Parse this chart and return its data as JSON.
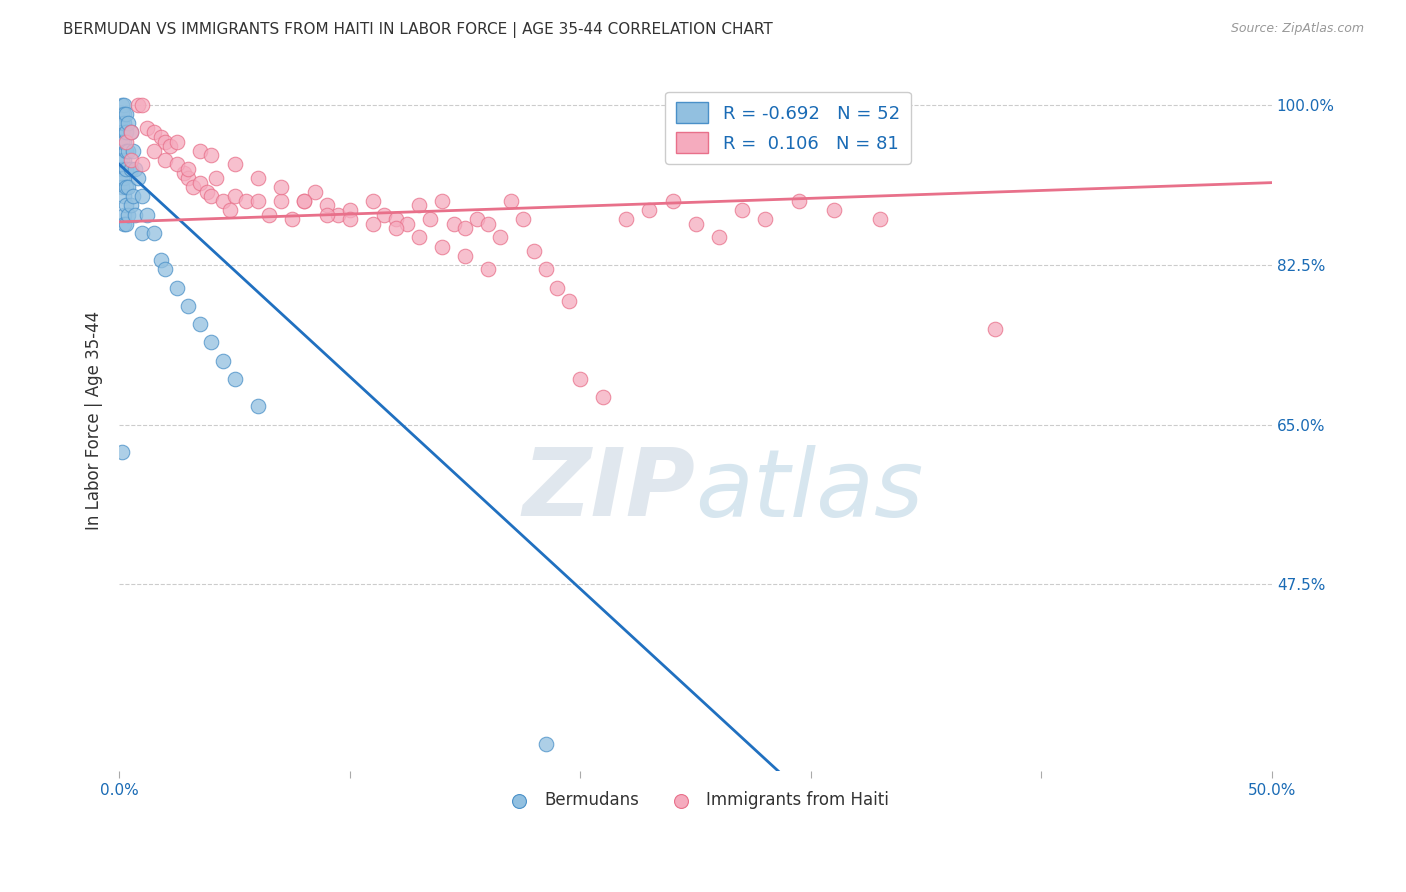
{
  "title": "BERMUDAN VS IMMIGRANTS FROM HAITI IN LABOR FORCE | AGE 35-44 CORRELATION CHART",
  "source": "Source: ZipAtlas.com",
  "ylabel": "In Labor Force | Age 35-44",
  "xlim": [
    0.0,
    0.5
  ],
  "ylim": [
    0.27,
    1.04
  ],
  "ytick_positions": [
    0.475,
    0.65,
    0.825,
    1.0
  ],
  "ytick_labels": [
    "47.5%",
    "65.0%",
    "82.5%",
    "100.0%"
  ],
  "legend_r_blue": "-0.692",
  "legend_n_blue": "52",
  "legend_r_pink": "0.106",
  "legend_n_pink": "81",
  "legend_label_blue": "Bermudans",
  "legend_label_pink": "Immigrants from Haiti",
  "watermark_zip": "ZIP",
  "watermark_atlas": "atlas",
  "blue_color": "#92C0E0",
  "pink_color": "#F5ABBE",
  "blue_edge_color": "#4A90C8",
  "pink_edge_color": "#E8708A",
  "blue_line_color": "#2070C0",
  "pink_line_color": "#E8708A",
  "blue_trend_x": [
    0.0,
    0.286
  ],
  "blue_trend_y": [
    0.935,
    0.27
  ],
  "pink_trend_x": [
    0.0,
    0.5
  ],
  "pink_trend_y": [
    0.872,
    0.915
  ],
  "blue_scatter_x": [
    0.001,
    0.001,
    0.001,
    0.001,
    0.001,
    0.001,
    0.001,
    0.001,
    0.001,
    0.002,
    0.002,
    0.002,
    0.002,
    0.002,
    0.002,
    0.002,
    0.002,
    0.002,
    0.003,
    0.003,
    0.003,
    0.003,
    0.003,
    0.003,
    0.003,
    0.004,
    0.004,
    0.004,
    0.004,
    0.005,
    0.005,
    0.005,
    0.006,
    0.006,
    0.007,
    0.007,
    0.008,
    0.01,
    0.01,
    0.012,
    0.015,
    0.018,
    0.02,
    0.025,
    0.03,
    0.035,
    0.04,
    0.045,
    0.05,
    0.06,
    0.185,
    0.001
  ],
  "blue_scatter_y": [
    1.0,
    0.99,
    0.98,
    0.97,
    0.96,
    0.94,
    0.93,
    0.92,
    0.91,
    1.0,
    0.99,
    0.98,
    0.96,
    0.94,
    0.92,
    0.9,
    0.88,
    0.87,
    0.99,
    0.97,
    0.95,
    0.93,
    0.91,
    0.89,
    0.87,
    0.98,
    0.95,
    0.91,
    0.88,
    0.97,
    0.93,
    0.89,
    0.95,
    0.9,
    0.93,
    0.88,
    0.92,
    0.9,
    0.86,
    0.88,
    0.86,
    0.83,
    0.82,
    0.8,
    0.78,
    0.76,
    0.74,
    0.72,
    0.7,
    0.67,
    0.3,
    0.62
  ],
  "pink_scatter_x": [
    0.003,
    0.005,
    0.008,
    0.01,
    0.012,
    0.015,
    0.018,
    0.02,
    0.022,
    0.025,
    0.028,
    0.03,
    0.032,
    0.035,
    0.038,
    0.04,
    0.042,
    0.045,
    0.048,
    0.05,
    0.055,
    0.06,
    0.065,
    0.07,
    0.075,
    0.08,
    0.085,
    0.09,
    0.095,
    0.1,
    0.11,
    0.115,
    0.12,
    0.125,
    0.13,
    0.135,
    0.14,
    0.145,
    0.15,
    0.155,
    0.16,
    0.165,
    0.17,
    0.175,
    0.18,
    0.185,
    0.19,
    0.195,
    0.2,
    0.21,
    0.22,
    0.23,
    0.24,
    0.25,
    0.26,
    0.27,
    0.28,
    0.295,
    0.31,
    0.33,
    0.005,
    0.01,
    0.015,
    0.02,
    0.025,
    0.03,
    0.035,
    0.04,
    0.05,
    0.06,
    0.07,
    0.08,
    0.09,
    0.1,
    0.11,
    0.12,
    0.13,
    0.14,
    0.15,
    0.16,
    0.38
  ],
  "pink_scatter_y": [
    0.96,
    0.97,
    1.0,
    1.0,
    0.975,
    0.97,
    0.965,
    0.96,
    0.955,
    0.96,
    0.925,
    0.92,
    0.91,
    0.915,
    0.905,
    0.9,
    0.92,
    0.895,
    0.885,
    0.9,
    0.895,
    0.895,
    0.88,
    0.895,
    0.875,
    0.895,
    0.905,
    0.89,
    0.88,
    0.885,
    0.895,
    0.88,
    0.875,
    0.87,
    0.89,
    0.875,
    0.895,
    0.87,
    0.865,
    0.875,
    0.87,
    0.855,
    0.895,
    0.875,
    0.84,
    0.82,
    0.8,
    0.785,
    0.7,
    0.68,
    0.875,
    0.885,
    0.895,
    0.87,
    0.855,
    0.885,
    0.875,
    0.895,
    0.885,
    0.875,
    0.94,
    0.935,
    0.95,
    0.94,
    0.935,
    0.93,
    0.95,
    0.945,
    0.935,
    0.92,
    0.91,
    0.895,
    0.88,
    0.875,
    0.87,
    0.865,
    0.855,
    0.845,
    0.835,
    0.82,
    0.755
  ]
}
